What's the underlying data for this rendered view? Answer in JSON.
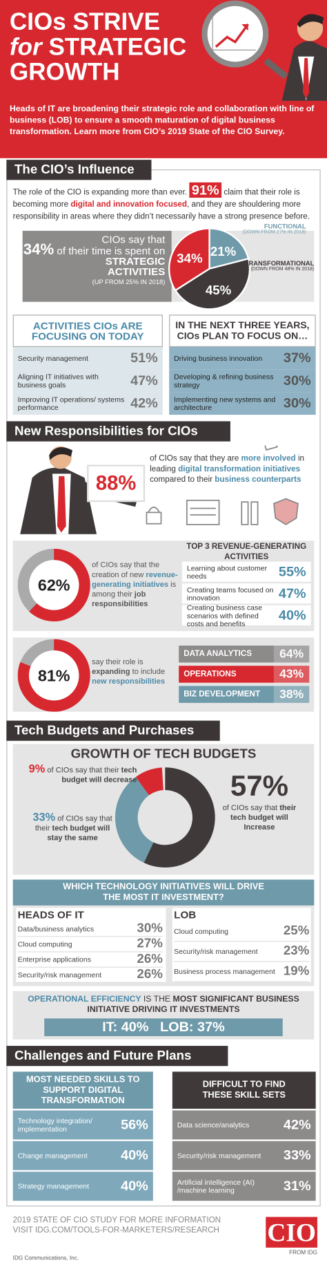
{
  "header": {
    "title": [
      "CIOs STRIVE",
      "for",
      "STRATEGIC",
      "GROWTH"
    ],
    "intro": "Heads of IT are broadening their strategic role and collaboration with line of business (LOB) to ensure a smooth maturation of digital business transformation. Learn more from CIO’s 2019 State of the CIO Survey."
  },
  "influence": {
    "heading": "The CIO’s Influence",
    "intro": [
      "The role of the CIO is expanding more than ever.",
      "91%",
      "claim that their role is becoming more",
      "digital and innovation focused",
      ", and they are shouldering more responsibility in areas where they didn’t necessarily have a strong presence before."
    ],
    "time": {
      "text": "CIOs say that",
      "stat": "34%",
      "text2": "of their time is spent on",
      "emphasis": "STRATEGIC ACTIVITIES",
      "note": "(UP FROM 25% IN 2018)"
    },
    "pie": {
      "type": "pie",
      "segments": [
        {
          "name": "FUNCTIONAL",
          "note": "(DOWN FROM 27% IN 2018)",
          "value": 21,
          "label": "21%",
          "color": "#6f9aaa"
        },
        {
          "name": "TRANSFORMATIONAL",
          "note": "(DOWN FROM 48% IN 2018)",
          "value": 45,
          "label": "45%",
          "color": "#3f393a"
        },
        {
          "value": 34,
          "label": "34%",
          "color": "#d7282f"
        }
      ]
    },
    "today": {
      "heading": "ACTIVITIES CIOs ARE FOCUSING ON TODAY",
      "rows": [
        {
          "label": "Security management",
          "value": "51%"
        },
        {
          "label": "Aligning IT initiatives with business goals",
          "value": "47%"
        },
        {
          "label": "Improving IT operations/ systems performance",
          "value": "42%"
        }
      ]
    },
    "next": {
      "heading": "IN THE NEXT THREE YEARS, CIOs PLAN TO FOCUS ON…",
      "rows": [
        {
          "label": "Driving business innovation",
          "value": "37%"
        },
        {
          "label": "Developing & refining business strategy",
          "value": "30%"
        },
        {
          "label": "Implementing new systems and architecture",
          "value": "30%"
        }
      ]
    }
  },
  "responsibilities": {
    "heading": "New Responsibilities for CIOs",
    "involved": {
      "stat": "88%",
      "text": [
        "of CIOs say that they are",
        "more involved",
        "in leading",
        "digital transformation initiatives",
        "compared to their",
        "business counterparts"
      ]
    },
    "revenue": {
      "donut": {
        "type": "donut",
        "value": 62,
        "label": "62%",
        "color": "#d7282f"
      },
      "text": [
        "of CIOs say that the creation of new",
        "revenue-generating initiatives",
        "is among their",
        "job responsibilities"
      ]
    },
    "top3": {
      "heading": "TOP 3 REVENUE-GENERATING ACTIVITIES",
      "rows": [
        {
          "label": "Learning about customer needs",
          "value": "55%"
        },
        {
          "label": "Creating teams focused on innovation",
          "value": "47%"
        },
        {
          "label": "Creating business case scenarios with defined costs and benefits",
          "value": "40%"
        }
      ]
    },
    "expanding": {
      "donut": {
        "type": "donut",
        "value": 81,
        "label": "81%",
        "color": "#d7282f"
      },
      "text": [
        "say their role is",
        "expanding",
        "to include",
        "new responsibilities"
      ]
    },
    "areas": [
      {
        "label": "DATA ANALYTICS",
        "value": "64%",
        "color": "#8d8a8a"
      },
      {
        "label": "OPERATIONS",
        "value": "43%",
        "color": "#d7282f"
      },
      {
        "label": "BIZ DEVELOPMENT",
        "value": "38%",
        "color": "#6f9aaa"
      }
    ]
  },
  "budgets": {
    "heading": "Tech Budgets and Purchases",
    "title": "GROWTH OF TECH BUDGETS",
    "donut": {
      "type": "donut",
      "segments": [
        {
          "value": 57,
          "label": "57%",
          "text": [
            "of CIOs say that",
            "their tech budget will Increase"
          ],
          "color": "#3f393a"
        },
        {
          "value": 33,
          "label": "33%",
          "text": [
            "of CIOs say that their",
            "tech budget will stay the same"
          ],
          "color": "#6f9aaa"
        },
        {
          "value": 9,
          "label": "9%",
          "text": [
            "of CIOs say that their",
            "tech budget will decrease"
          ],
          "color": "#d7282f"
        }
      ]
    },
    "initiatives": {
      "heading": "WHICH TECHNOLOGY INITIATIVES WILL DRIVE THE MOST IT INVESTMENT?",
      "it": {
        "heading": "HEADS OF IT",
        "rows": [
          {
            "label": "Data/business analytics",
            "value": "30%"
          },
          {
            "label": "Cloud computing",
            "value": "27%"
          },
          {
            "label": "Enterprise applications",
            "value": "26%"
          },
          {
            "label": "Security/risk management",
            "value": "26%"
          }
        ]
      },
      "lob": {
        "heading": "LOB",
        "rows": [
          {
            "label": "Cloud computing",
            "value": "25%"
          },
          {
            "label": "Security/risk management",
            "value": "23%"
          },
          {
            "label": "Business process management",
            "value": "19%"
          }
        ]
      }
    },
    "efficiency": {
      "text": [
        "OPERATIONAL EFFICIENCY",
        "IS THE",
        "MOST SIGNIFICANT",
        "BUSINESS INITIATIVE DRIVING IT INVESTMENTS"
      ],
      "it": "IT: 40%",
      "lob": "LOB: 37%"
    }
  },
  "challenges": {
    "heading": "Challenges and Future Plans",
    "needed": {
      "heading": "MOST NEEDED SKILLS TO SUPPORT DIGITAL TRANSFORMATION",
      "rows": [
        {
          "label": "Technology integration/ implementation",
          "value": "56%"
        },
        {
          "label": "Change management",
          "value": "40%"
        },
        {
          "label": "Strategy management",
          "value": "40%"
        }
      ]
    },
    "difficult": {
      "heading": "DIFFICULT TO FIND THESE SKILL SETS",
      "rows": [
        {
          "label": "Data science/analytics",
          "value": "42%"
        },
        {
          "label": "Security/risk management",
          "value": "33%"
        },
        {
          "label": "Artificial intelligence (AI) /machine learning",
          "value": "31%"
        }
      ]
    }
  },
  "footer": {
    "lines": [
      "2019 STATE OF CIO STUDY FOR MORE INFORMATION",
      "VISIT IDG.COM/TOOLS-FOR-MARKETERS/RESEARCH"
    ],
    "company": "IDG Communications, Inc.",
    "logo": "CIO",
    "logo_sub": "FROM IDG"
  }
}
